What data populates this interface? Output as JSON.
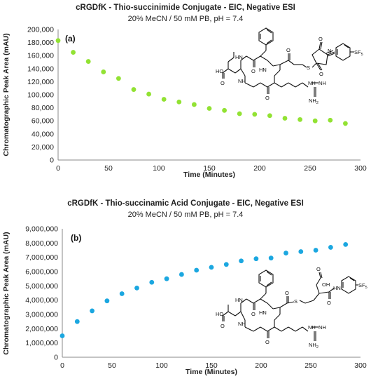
{
  "chart_data": [
    {
      "type": "scatter",
      "panel_label": "(a)",
      "title": "cRGDfK - Thio-succinimide Conjugate - EIC, Negative ESI",
      "subtitle": "20% MeCN / 50 mM PB, pH = 7.4",
      "xlabel": "Time (Minutes)",
      "ylabel": "Chromatographic Peak Area (mAU)",
      "xlim": [
        0,
        300
      ],
      "ylim": [
        0,
        200000
      ],
      "x_ticks": [
        0,
        50,
        100,
        150,
        200,
        250,
        300
      ],
      "y_ticks": [
        0,
        20000,
        40000,
        60000,
        80000,
        100000,
        120000,
        140000,
        160000,
        180000,
        200000
      ],
      "x_tick_labels": [
        "0",
        "50",
        "100",
        "150",
        "200",
        "250",
        "300"
      ],
      "y_tick_labels": [
        "0",
        "20,000",
        "40,000",
        "60,000",
        "80,000",
        "100,000",
        "120,000",
        "140,000",
        "160,000",
        "180,000",
        "200,000"
      ],
      "grid": false,
      "legend": "none",
      "color": "#92e233",
      "x": [
        0,
        15,
        30,
        45,
        60,
        75,
        90,
        105,
        120,
        135,
        150,
        165,
        180,
        195,
        210,
        225,
        240,
        255,
        270,
        285
      ],
      "y": [
        183000,
        165000,
        151000,
        135000,
        125000,
        108000,
        101000,
        93000,
        89000,
        85000,
        79000,
        76000,
        71000,
        70000,
        68000,
        64000,
        62000,
        60000,
        61000,
        56000
      ]
    },
    {
      "type": "scatter",
      "panel_label": "(b)",
      "title": "cRGDfK - Thio-succinamic Acid Conjugate - EIC, Negative ESI",
      "subtitle": "20% MeCN / 50 mM PB, pH = 7.4",
      "xlabel": "Time (Minutes)",
      "ylabel": "Chromatographic Peak Area (mAU)",
      "xlim": [
        0,
        300
      ],
      "ylim": [
        0,
        9000000
      ],
      "x_ticks": [
        0,
        50,
        100,
        150,
        200,
        250,
        300
      ],
      "y_ticks": [
        0,
        1000000,
        2000000,
        3000000,
        4000000,
        5000000,
        6000000,
        7000000,
        8000000,
        9000000
      ],
      "x_tick_labels": [
        "0",
        "50",
        "100",
        "150",
        "200",
        "250",
        "300"
      ],
      "y_tick_labels": [
        "0",
        "1,000,000",
        "2,000,000",
        "3,000,000",
        "4,000,000",
        "5,000,000",
        "6,000,000",
        "7,000,000",
        "8,000,000",
        "9,000,000"
      ],
      "grid": false,
      "legend": "none",
      "color": "#1ba7e0",
      "x": [
        0,
        15,
        30,
        45,
        60,
        75,
        90,
        105,
        120,
        135,
        150,
        165,
        180,
        195,
        210,
        225,
        240,
        255,
        270,
        285
      ],
      "y": [
        1500000,
        2500000,
        3250000,
        3950000,
        4450000,
        4850000,
        5250000,
        5500000,
        5800000,
        6100000,
        6300000,
        6500000,
        6750000,
        6900000,
        6950000,
        7300000,
        7400000,
        7500000,
        7700000,
        7900000
      ]
    }
  ],
  "structure_labels": {
    "a": {
      "HO": "HO",
      "O": "O",
      "N": "N",
      "HN": "HN",
      "NH": "NH",
      "NH2": "NH",
      "NH2_sub": "2",
      "S": "S",
      "SF": "SF",
      "SF_sub": "5"
    },
    "b": {
      "HO": "HO",
      "O": "O",
      "OH": "OH",
      "HN": "HN",
      "NH": "NH",
      "NH2": "NH",
      "NH2_sub": "2",
      "S": "S",
      "SF": "SF",
      "SF_sub": "5"
    }
  }
}
